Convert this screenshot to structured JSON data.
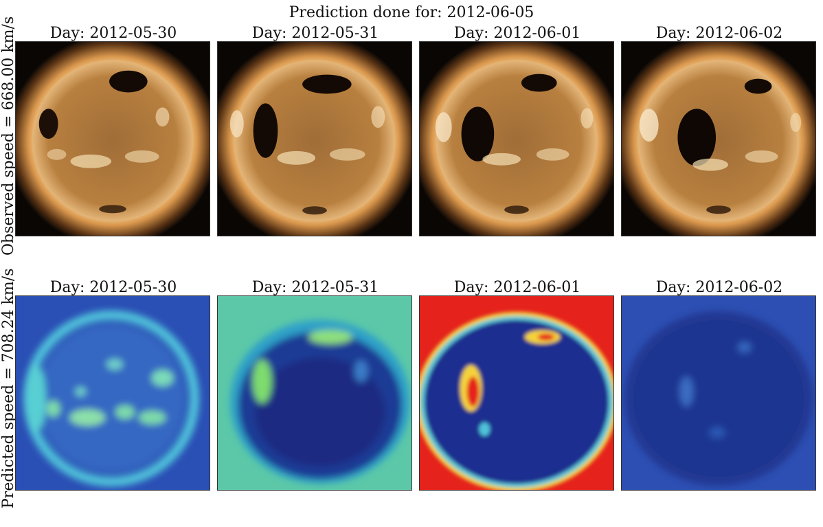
{
  "suptitle": "Prediction done for: 2012-06-05",
  "rows": [
    {
      "label": "Observed speed = 668.00 km/s",
      "kind": "observed",
      "panels": [
        {
          "title": "Day: 2012-05-30"
        },
        {
          "title": "Day: 2012-05-31"
        },
        {
          "title": "Day: 2012-06-01"
        },
        {
          "title": "Day: 2012-06-02"
        }
      ]
    },
    {
      "label": "Predicted speed = 708.24 km/s",
      "kind": "predicted",
      "panels": [
        {
          "title": "Day: 2012-05-30"
        },
        {
          "title": "Day: 2012-05-31"
        },
        {
          "title": "Day: 2012-06-01"
        },
        {
          "title": "Day: 2012-06-02"
        }
      ]
    }
  ],
  "colors": {
    "solar_background": "#0a0604",
    "solar_corona": "#e9b26a",
    "solar_disk": "#b37a3c",
    "coronal_hole": "#140a05",
    "heatmap_low": "#1f2f8c",
    "heatmap_mid": "#4fc9d8",
    "heatmap_high": "#e5221c"
  }
}
